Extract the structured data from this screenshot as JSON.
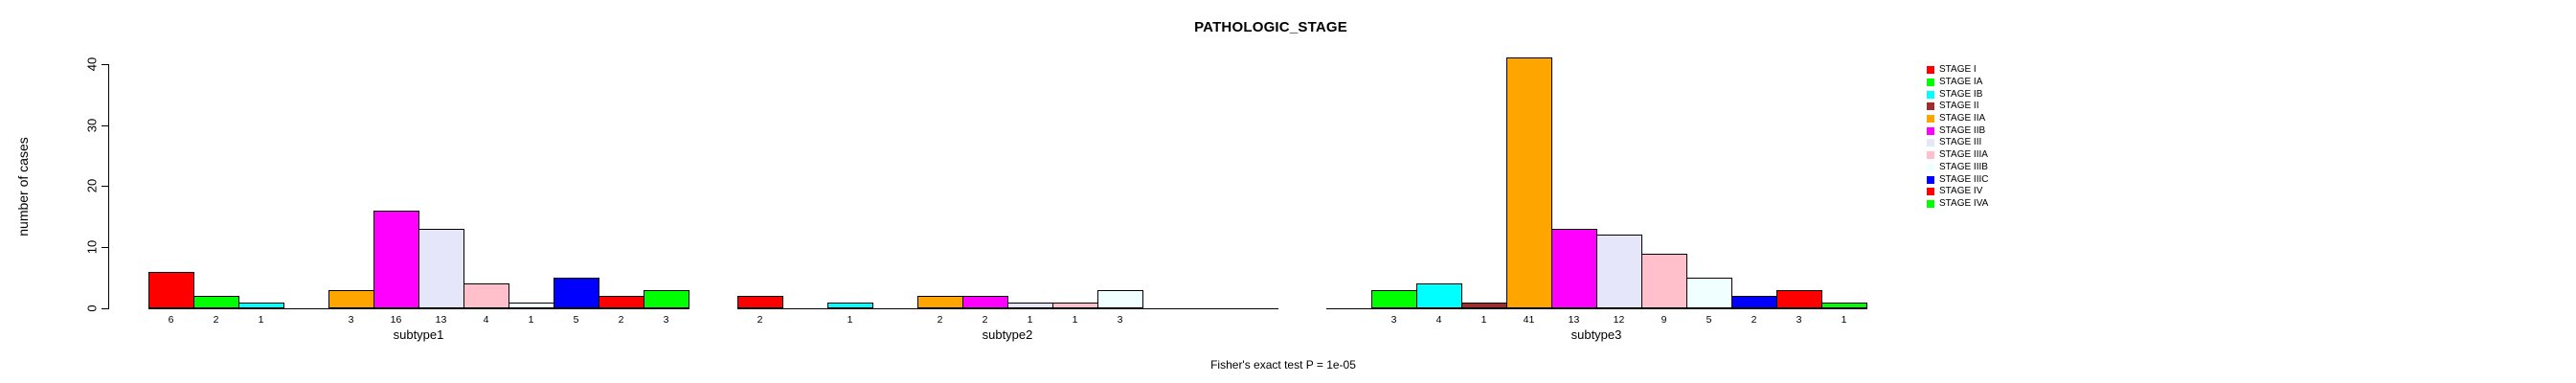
{
  "chart_data": {
    "type": "bar",
    "title": "PATHOLOGIC_STAGE",
    "ylabel": "number of cases",
    "footer": "Fisher's exact test P = 1e-05",
    "yticks": [
      0,
      10,
      20,
      30,
      40
    ],
    "ylim": [
      0,
      40
    ],
    "grid": false,
    "legend_position": "right",
    "bar_value_labels_shown": true,
    "categories": [
      "subtype1",
      "subtype2",
      "subtype3"
    ],
    "series": [
      {
        "name": "STAGE I",
        "color": "#FF0000",
        "values": [
          6,
          2,
          0
        ]
      },
      {
        "name": "STAGE IA",
        "color": "#00FF00",
        "values": [
          2,
          0,
          3
        ]
      },
      {
        "name": "STAGE IB",
        "color": "#00FFFF",
        "values": [
          1,
          1,
          4
        ]
      },
      {
        "name": "STAGE II",
        "color": "#A52A2A",
        "values": [
          0,
          0,
          1
        ]
      },
      {
        "name": "STAGE IIA",
        "color": "#FFA500",
        "values": [
          3,
          2,
          41
        ]
      },
      {
        "name": "STAGE IIB",
        "color": "#FF00FF",
        "values": [
          16,
          2,
          13
        ]
      },
      {
        "name": "STAGE III",
        "color": "#E6E6FA",
        "values": [
          13,
          1,
          12
        ]
      },
      {
        "name": "STAGE IIIA",
        "color": "#FFC0CB",
        "values": [
          4,
          1,
          9
        ]
      },
      {
        "name": "STAGE IIIB",
        "color": "#F0FFFF",
        "values": [
          1,
          3,
          5
        ]
      },
      {
        "name": "STAGE IIIC",
        "color": "#0000FF",
        "values": [
          5,
          0,
          2
        ]
      },
      {
        "name": "STAGE IV",
        "color": "#FF0000",
        "values": [
          2,
          0,
          3
        ]
      },
      {
        "name": "STAGE IVA",
        "color": "#00FF00",
        "values": [
          3,
          0,
          1
        ]
      }
    ]
  }
}
